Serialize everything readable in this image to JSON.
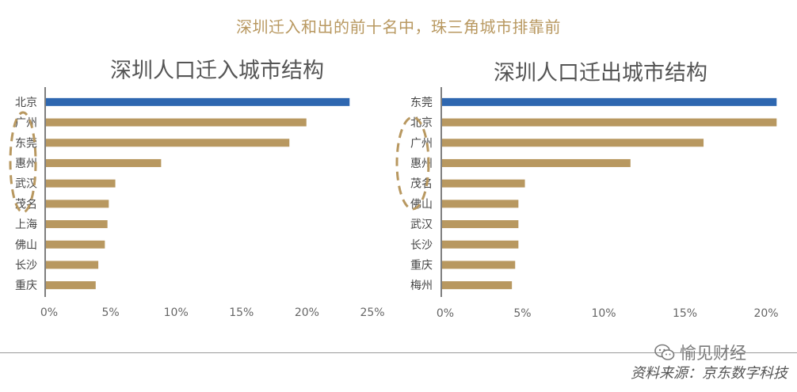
{
  "header": {
    "title": "深圳迁入和出的前十名中，珠三角城市排靠前"
  },
  "chart_data": [
    {
      "type": "bar",
      "orientation": "horizontal",
      "title": "深圳人口迁入城市结构",
      "categories": [
        "北京",
        "广州",
        "东莞",
        "惠州",
        "武汉",
        "茂名",
        "上海",
        "佛山",
        "长沙",
        "重庆"
      ],
      "values": [
        23.2,
        19.9,
        18.6,
        8.8,
        5.3,
        4.8,
        4.7,
        4.5,
        4.0,
        3.8
      ],
      "xlim": [
        0,
        25
      ],
      "xticks": [
        0,
        5,
        10,
        15,
        20,
        25
      ],
      "tick_labels": [
        "0%",
        "5%",
        "10%",
        "15%",
        "20%",
        "25%"
      ],
      "highlight_index": 0,
      "colors": {
        "highlight": "#2E67B0",
        "bar": "#B89860"
      },
      "annotation": "dashed-ellipse-around-东莞-惠州-武汉"
    },
    {
      "type": "bar",
      "orientation": "horizontal",
      "title": "深圳人口迁出城市结构",
      "categories": [
        "东莞",
        "北京",
        "广州",
        "惠州",
        "茂名",
        "佛山",
        "武汉",
        "长沙",
        "重庆",
        "梅州"
      ],
      "values": [
        20.6,
        20.6,
        16.1,
        11.6,
        5.1,
        4.7,
        4.7,
        4.7,
        4.5,
        4.3
      ],
      "xlim": [
        0,
        21
      ],
      "xticks": [
        0,
        5,
        10,
        15,
        20
      ],
      "tick_labels": [
        "0%",
        "5%",
        "10%",
        "15%",
        "20%"
      ],
      "highlight_index": 0,
      "colors": {
        "highlight": "#2E67B0",
        "bar": "#B89860"
      },
      "annotation": "dashed-ellipse-around-广州-惠州-茂名"
    }
  ],
  "footer": {
    "watermark": "愉见财经",
    "watermark_icon": "wechat-icon",
    "source": "资料来源：京东数字科技"
  }
}
